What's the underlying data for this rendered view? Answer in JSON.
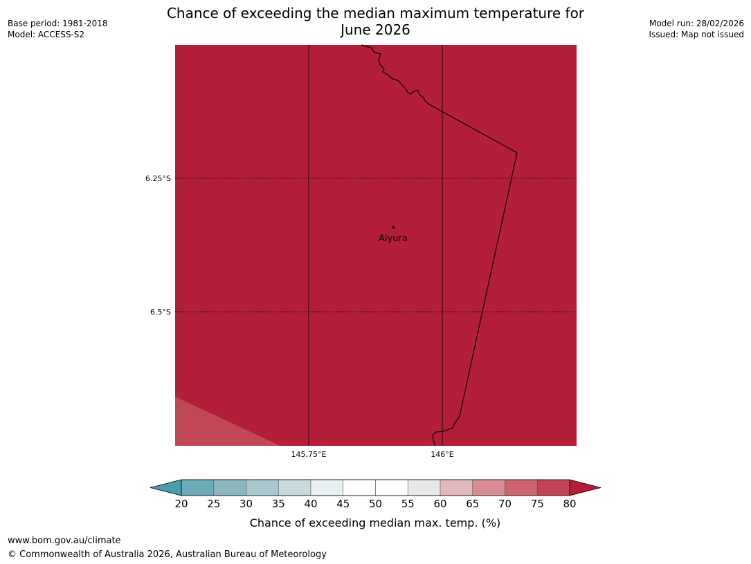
{
  "header": {
    "title_line1": "Chance of exceeding the median maximum temperature for",
    "title_line2": "June 2026",
    "base_period": "Base period: 1981-2018",
    "model": "Model: ACCESS-S2",
    "model_run": "Model run: 28/02/2026",
    "issued": "Issued: Map not issued"
  },
  "map": {
    "lat_labels": [
      "6.25°S",
      "6.5°S"
    ],
    "lon_labels": [
      "145.75°E",
      "146°E"
    ],
    "place": {
      "name": "Aiyura"
    },
    "colors": {
      "main_fill": "#b31e39",
      "corner_fill": "#c14956",
      "gridline": "#000000",
      "coastline": "#000000"
    }
  },
  "colorbar": {
    "ticks": [
      "20",
      "25",
      "30",
      "35",
      "40",
      "45",
      "50",
      "55",
      "60",
      "65",
      "70",
      "75",
      "80"
    ],
    "colors": [
      "#6aabb8",
      "#8bb7c3",
      "#a9c7ce",
      "#c9dbde",
      "#e8f0f2",
      "#ffffff",
      "#ffffff",
      "#e8e8e8",
      "#e3b8bd",
      "#d88d95",
      "#cc6570",
      "#c14556"
    ],
    "low_extend_color": "#4a9dae",
    "high_extend_color": "#b31e39",
    "label": "Chance of exceeding median max. temp. (%)"
  },
  "footer": {
    "url": "www.bom.gov.au/climate",
    "copyright": "© Commonwealth of Australia 2026, Australian Bureau of Meteorology"
  }
}
